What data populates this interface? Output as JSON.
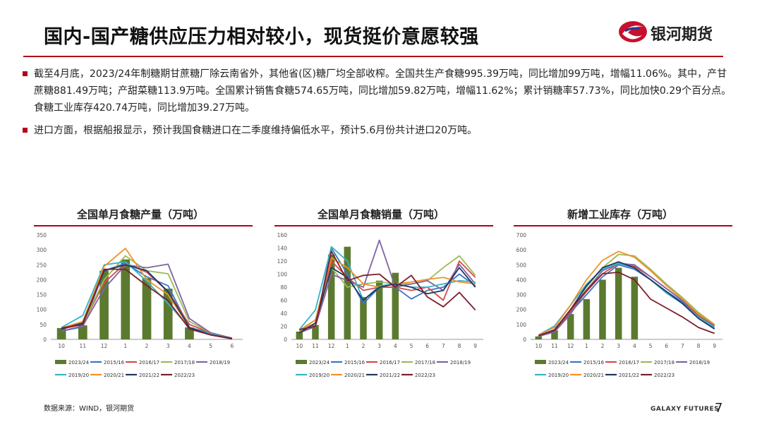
{
  "slide": {
    "title": "国内-国产糖供应压力相对较小，现货挺价意愿较强",
    "logo_text": "银河期货",
    "bullets": [
      "截至4月底，2023/24年制糖期甘蔗糖厂除云南省外，其他省(区)糖厂均全部收榨。全国共生产食糖995.39万吨，同比增加99万吨，增幅11.06%。其中，产甘蔗糖881.49万吨；产甜菜糖113.9万吨。全国累计销售食糖574.65万吨，同比增加59.82万吨，增幅11.62%；累计销糖率57.73%，同比加快0.29个百分点。食糖工业库存420.74万吨，同比增加39.27万吨。",
      "进口方面，根据船报显示，预计我国食糖进口在二季度维持偏低水平，预计5.6月份共计进口20万吨。"
    ],
    "source": "数据来源：WIND，银河期货",
    "brand_en": "GALAXY FUTURES",
    "page_number": "7",
    "accent_color": "#b3001b"
  },
  "chart_data": [
    {
      "type": "line",
      "title": "全国单月食糖产量（万吨）",
      "categories": [
        "10",
        "11",
        "12",
        "1",
        "2",
        "3",
        "4",
        "5",
        "6"
      ],
      "ylim": [
        0,
        350
      ],
      "yticks": [
        0,
        50,
        100,
        150,
        200,
        250,
        300,
        350
      ],
      "grid": false,
      "legend": "bottom",
      "bar_series": {
        "name": "2023/24",
        "color": "#5b7a2f",
        "values": [
          38,
          47,
          230,
          268,
          205,
          170,
          40,
          null,
          null
        ]
      },
      "series": [
        {
          "name": "2015/16",
          "color": "#3a75c4",
          "values": [
            28,
            42,
            230,
            255,
            210,
            180,
            40,
            22,
            3
          ]
        },
        {
          "name": "2016/17",
          "color": "#d94a4a",
          "values": [
            35,
            50,
            190,
            255,
            225,
            160,
            50,
            22,
            4
          ]
        },
        {
          "name": "2017/18",
          "color": "#9bbb59",
          "values": [
            40,
            50,
            200,
            280,
            230,
            220,
            60,
            22,
            4
          ]
        },
        {
          "name": "2018/19",
          "color": "#8064a2",
          "values": [
            28,
            45,
            170,
            250,
            240,
            252,
            70,
            22,
            4
          ]
        },
        {
          "name": "2019/20",
          "color": "#31b6c9",
          "values": [
            40,
            80,
            250,
            260,
            195,
            120,
            40,
            18,
            3
          ]
        },
        {
          "name": "2020/21",
          "color": "#f0922b",
          "values": [
            38,
            60,
            245,
            305,
            200,
            150,
            40,
            15,
            3
          ]
        },
        {
          "name": "2021/22",
          "color": "#1f3864",
          "values": [
            35,
            55,
            230,
            250,
            230,
            160,
            40,
            15,
            3
          ]
        },
        {
          "name": "2022/23",
          "color": "#7b1f2e",
          "values": [
            38,
            50,
            235,
            235,
            180,
            130,
            35,
            15,
            2
          ]
        }
      ]
    },
    {
      "type": "line",
      "title": "全国单月食糖销量（万吨）",
      "categories": [
        "10",
        "11",
        "12",
        "1",
        "2",
        "3",
        "4",
        "5",
        "6",
        "7",
        "8",
        "9"
      ],
      "ylim": [
        0,
        160
      ],
      "yticks": [
        0,
        20,
        40,
        60,
        80,
        100,
        120,
        140,
        160
      ],
      "grid": false,
      "legend": "bottom",
      "bar_series": {
        "name": "2023/24",
        "color": "#5b7a2f",
        "values": [
          12,
          22,
          130,
          142,
          65,
          90,
          102,
          null,
          null,
          null,
          null,
          null
        ]
      },
      "series": [
        {
          "name": "2015/16",
          "color": "#3a75c4",
          "values": [
            10,
            20,
            140,
            100,
            55,
            80,
            80,
            62,
            75,
            80,
            100,
            82
          ]
        },
        {
          "name": "2016/17",
          "color": "#d94a4a",
          "values": [
            12,
            25,
            120,
            95,
            75,
            80,
            80,
            75,
            80,
            60,
            120,
            95
          ]
        },
        {
          "name": "2017/18",
          "color": "#9bbb59",
          "values": [
            14,
            30,
            110,
            80,
            85,
            88,
            85,
            85,
            90,
            110,
            128,
            98
          ]
        },
        {
          "name": "2018/19",
          "color": "#8064a2",
          "values": [
            10,
            20,
            100,
            90,
            80,
            152,
            80,
            85,
            90,
            75,
            115,
            85
          ]
        },
        {
          "name": "2019/20",
          "color": "#31b6c9",
          "values": [
            15,
            45,
            142,
            120,
            60,
            82,
            85,
            80,
            80,
            85,
            90,
            88
          ]
        },
        {
          "name": "2020/21",
          "color": "#f0922b",
          "values": [
            12,
            30,
            125,
            110,
            85,
            80,
            85,
            88,
            92,
            95,
            88,
            85
          ]
        },
        {
          "name": "2021/22",
          "color": "#1f3864",
          "values": [
            10,
            25,
            110,
            95,
            60,
            80,
            85,
            80,
            70,
            75,
            110,
            80
          ]
        },
        {
          "name": "2022/23",
          "color": "#7b1f2e",
          "values": [
            15,
            20,
            135,
            90,
            98,
            100,
            80,
            98,
            65,
            50,
            72,
            45
          ]
        }
      ]
    },
    {
      "type": "line",
      "title": "新增工业库存（万吨）",
      "categories": [
        "10",
        "11",
        "12",
        "1",
        "2",
        "3",
        "4",
        "5",
        "6",
        "7",
        "8",
        "9"
      ],
      "ylim": [
        0,
        700
      ],
      "yticks": [
        0,
        100,
        200,
        300,
        400,
        500,
        600,
        700
      ],
      "grid": false,
      "legend": "bottom",
      "bar_series": {
        "name": "2023/24",
        "color": "#5b7a2f",
        "values": [
          20,
          60,
          170,
          270,
          400,
          480,
          420,
          null,
          null,
          null,
          null,
          null
        ]
      },
      "series": [
        {
          "name": "2015/16",
          "color": "#3a75c4",
          "values": [
            20,
            55,
            180,
            300,
            420,
            500,
            470,
            400,
            320,
            250,
            150,
            80
          ]
        },
        {
          "name": "2016/17",
          "color": "#d94a4a",
          "values": [
            25,
            60,
            190,
            320,
            440,
            510,
            490,
            420,
            340,
            260,
            160,
            90
          ]
        },
        {
          "name": "2017/18",
          "color": "#9bbb59",
          "values": [
            20,
            65,
            200,
            350,
            480,
            570,
            560,
            470,
            370,
            280,
            180,
            100
          ]
        },
        {
          "name": "2018/19",
          "color": "#8064a2",
          "values": [
            20,
            50,
            170,
            330,
            460,
            510,
            500,
            420,
            340,
            260,
            170,
            90
          ]
        },
        {
          "name": "2019/20",
          "color": "#31b6c9",
          "values": [
            30,
            90,
            230,
            370,
            470,
            510,
            480,
            400,
            310,
            240,
            150,
            80
          ]
        },
        {
          "name": "2020/21",
          "color": "#f0922b",
          "values": [
            30,
            80,
            230,
            400,
            530,
            590,
            550,
            460,
            360,
            270,
            170,
            100
          ]
        },
        {
          "name": "2021/22",
          "color": "#1f3864",
          "values": [
            25,
            65,
            200,
            360,
            480,
            520,
            480,
            400,
            320,
            240,
            140,
            70
          ]
        },
        {
          "name": "2022/23",
          "color": "#7b1f2e",
          "values": [
            25,
            60,
            200,
            330,
            440,
            450,
            400,
            270,
            210,
            150,
            80,
            40
          ]
        }
      ]
    }
  ]
}
